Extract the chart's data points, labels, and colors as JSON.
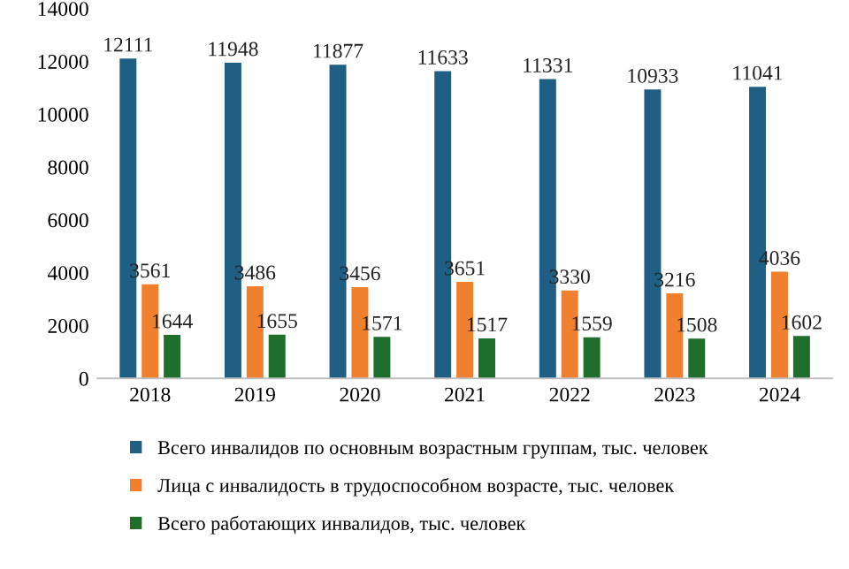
{
  "chart_data": {
    "type": "bar",
    "categories": [
      "2018",
      "2019",
      "2020",
      "2021",
      "2022",
      "2023",
      "2024"
    ],
    "series": [
      {
        "name": "Всего инвалидов по основным возрастным группам, тыс. человек",
        "color": "#1f5f84",
        "values": [
          12111,
          11948,
          11877,
          11633,
          11331,
          10933,
          11041
        ]
      },
      {
        "name": "Лица с инвалидость в трудоспособном возрасте, тыс. человек",
        "color": "#f07f2e",
        "values": [
          3561,
          3486,
          3456,
          3651,
          3330,
          3216,
          4036
        ]
      },
      {
        "name": "Всего работающих инвалидов, тыс. человек",
        "color": "#1e6e2c",
        "values": [
          1644,
          1655,
          1571,
          1517,
          1559,
          1508,
          1602
        ]
      }
    ],
    "ylim": [
      0,
      14000
    ],
    "yticks": [
      0,
      2000,
      4000,
      6000,
      8000,
      10000,
      12000,
      14000
    ],
    "data_labels": true,
    "grid": false,
    "legend": "bottom"
  }
}
